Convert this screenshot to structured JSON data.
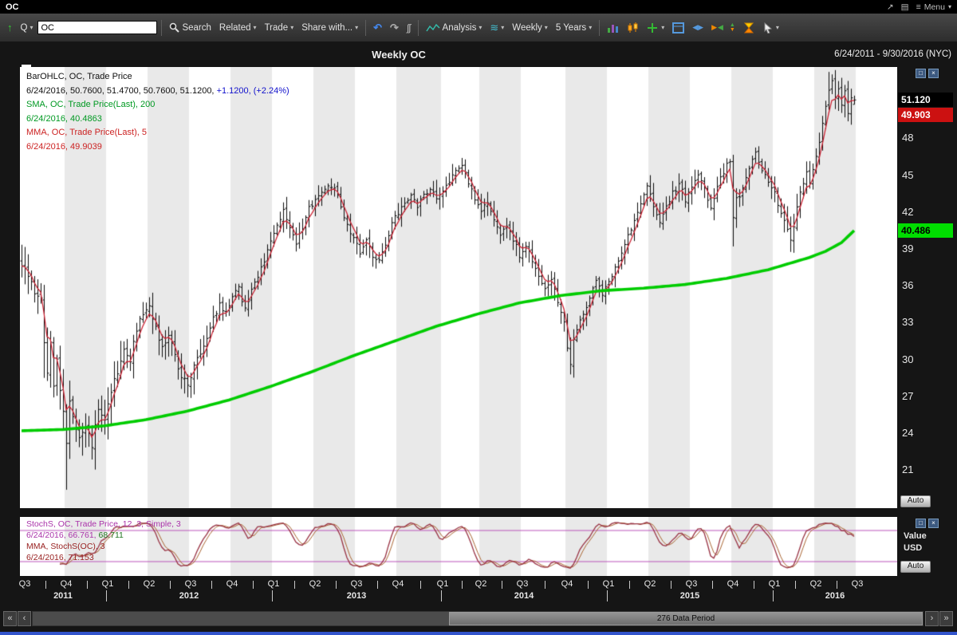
{
  "window": {
    "title": "OC",
    "menu_label": "Menu"
  },
  "icons": {
    "up_arrow": "↑",
    "caret": "▾",
    "undo": "↶",
    "redo": "↷",
    "curves": "∫∫",
    "waves": "≋",
    "popout": "↗",
    "layout": "▤",
    "hamburger": "≡",
    "harrows": "◀▶",
    "bowtie_left": "▶",
    "bowtie_right": "◀",
    "tri_up": "▲",
    "tri_down": "▼",
    "scroll_first": "«",
    "scroll_prev": "‹",
    "scroll_next": "›",
    "scroll_last": "»",
    "pane_box": "□",
    "pane_close": "×"
  },
  "toolbar": {
    "quote_label": "Q",
    "symbol_input": "OC",
    "search_label": "Search",
    "related_label": "Related",
    "trade_label": "Trade",
    "share_label": "Share with...",
    "analysis_label": "Analysis",
    "period_label": "Weekly",
    "range_label": "5 Years"
  },
  "chart_header": {
    "title": "Weekly OC",
    "date_range": "6/24/2011 - 9/30/2016 (NYC)"
  },
  "main_legend": {
    "series1": "BarOHLC, OC, Trade Price",
    "values1": "6/24/2016, 50.7600, 51.4700, 50.7600, 51.1200,",
    "values1_change": "+1.1200, (+2.24%)",
    "series2": "SMA, OC, Trade Price(Last), 200",
    "values2": "6/24/2016, 40.4863",
    "series3": "MMA, OC, Trade Price(Last), 5",
    "values3": "6/24/2016, 49.9039"
  },
  "sub_legend": {
    "series1": "StochS, OC, Trade Price, 12, 3, Simple, 3",
    "values1a": "6/24/2016, 66.761,",
    "values1b": "68.711",
    "series2": "MMA, StochS(OC), 3",
    "values2": "6/24/2016, 71.153"
  },
  "price_tags": [
    {
      "label": "51.120",
      "price": 51.12,
      "bg": "#000000",
      "fg": "#ffffff"
    },
    {
      "label": "49.903",
      "price": 49.9039,
      "bg": "#cc1111",
      "fg": "#ffffff"
    },
    {
      "label": "40.486",
      "price": 40.4863,
      "bg": "#00dd00",
      "fg": "#000000"
    }
  ],
  "main_axis": {
    "ticks": [
      48,
      45,
      42,
      39,
      36,
      33,
      30,
      27,
      24,
      21
    ],
    "auto_label": "Auto"
  },
  "sub_axis": {
    "line1": "Value",
    "line2": "USD",
    "auto_label": "Auto"
  },
  "x_axis": {
    "quarters": [
      {
        "label": "Q3",
        "week": 1
      },
      {
        "label": "Q4",
        "week": 14
      },
      {
        "label": "Q1",
        "week": 27
      },
      {
        "label": "Q2",
        "week": 40
      },
      {
        "label": "Q3",
        "week": 53
      },
      {
        "label": "Q4",
        "week": 66
      },
      {
        "label": "Q1",
        "week": 79
      },
      {
        "label": "Q2",
        "week": 92
      },
      {
        "label": "Q3",
        "week": 105
      },
      {
        "label": "Q4",
        "week": 118
      },
      {
        "label": "Q1",
        "week": 132
      },
      {
        "label": "Q2",
        "week": 144
      },
      {
        "label": "Q3",
        "week": 157
      },
      {
        "label": "Q4",
        "week": 171
      },
      {
        "label": "Q1",
        "week": 184
      },
      {
        "label": "Q2",
        "week": 197
      },
      {
        "label": "Q3",
        "week": 210
      },
      {
        "label": "Q4",
        "week": 223
      },
      {
        "label": "Q1",
        "week": 236
      },
      {
        "label": "Q2",
        "week": 249
      },
      {
        "label": "Q3",
        "week": 262
      }
    ],
    "years": [
      {
        "label": "2011",
        "start": 0,
        "end": 27
      },
      {
        "label": "2012",
        "start": 27,
        "end": 79
      },
      {
        "label": "2013",
        "start": 79,
        "end": 132
      },
      {
        "label": "2014",
        "start": 132,
        "end": 184
      },
      {
        "label": "2015",
        "start": 184,
        "end": 236
      },
      {
        "label": "2016",
        "start": 236,
        "end": 275
      }
    ],
    "year_boundaries": [
      27,
      79,
      132,
      184,
      236
    ]
  },
  "scrollbar": {
    "label": "276 Data Period"
  },
  "chart_data": {
    "type": "ohlc",
    "symbol": "OC",
    "interval": "Weekly",
    "title": "Weekly OC",
    "date_start": "6/24/2011",
    "date_end": "9/30/2016",
    "weeks_total": 275,
    "data_weeks": 262,
    "ylim": [
      17.9,
      53.8
    ],
    "y_ticks": [
      48,
      45,
      42,
      39,
      36,
      33,
      30,
      27,
      24,
      21
    ],
    "last_bar": {
      "date": "6/24/2016",
      "open": 50.76,
      "high": 51.47,
      "low": 50.76,
      "close": 51.12,
      "change": "+1.1200",
      "change_pct": "+2.24%"
    },
    "sma200_last": 40.4863,
    "mma5_last": 49.9039,
    "close_anchors": [
      [
        0,
        37.8
      ],
      [
        2,
        36.8
      ],
      [
        4,
        35.5
      ],
      [
        6,
        35.0
      ],
      [
        7,
        31.5
      ],
      [
        8,
        29.0
      ],
      [
        9,
        31.5
      ],
      [
        10,
        28.0
      ],
      [
        11,
        30.0
      ],
      [
        12,
        27.5
      ],
      [
        13,
        26.0
      ],
      [
        14,
        23.0
      ],
      [
        15,
        26.5
      ],
      [
        16,
        25.5
      ],
      [
        18,
        23.5
      ],
      [
        20,
        24.5
      ],
      [
        22,
        23.0
      ],
      [
        24,
        26.0
      ],
      [
        26,
        25.0
      ],
      [
        28,
        27.5
      ],
      [
        30,
        29.0
      ],
      [
        32,
        31.0
      ],
      [
        34,
        30.0
      ],
      [
        36,
        32.5
      ],
      [
        38,
        33.8
      ],
      [
        40,
        34.5
      ],
      [
        42,
        32.5
      ],
      [
        44,
        31.0
      ],
      [
        46,
        32.0
      ],
      [
        48,
        30.3
      ],
      [
        50,
        28.5
      ],
      [
        52,
        28.0
      ],
      [
        54,
        29.5
      ],
      [
        56,
        30.5
      ],
      [
        58,
        31.5
      ],
      [
        60,
        33.3
      ],
      [
        62,
        34.5
      ],
      [
        64,
        33.8
      ],
      [
        66,
        35.0
      ],
      [
        68,
        35.8
      ],
      [
        70,
        34.0
      ],
      [
        72,
        35.5
      ],
      [
        74,
        36.8
      ],
      [
        76,
        38.0
      ],
      [
        78,
        39.5
      ],
      [
        80,
        41.0
      ],
      [
        82,
        42.0
      ],
      [
        84,
        40.5
      ],
      [
        86,
        39.5
      ],
      [
        88,
        40.8
      ],
      [
        90,
        42.3
      ],
      [
        92,
        42.8
      ],
      [
        94,
        43.8
      ],
      [
        96,
        44.3
      ],
      [
        98,
        44.0
      ],
      [
        100,
        42.5
      ],
      [
        102,
        41.0
      ],
      [
        104,
        39.8
      ],
      [
        106,
        38.8
      ],
      [
        108,
        39.8
      ],
      [
        110,
        38.5
      ],
      [
        112,
        38.0
      ],
      [
        114,
        39.5
      ],
      [
        116,
        41.0
      ],
      [
        118,
        42.0
      ],
      [
        120,
        42.8
      ],
      [
        122,
        43.5
      ],
      [
        124,
        42.5
      ],
      [
        126,
        43.3
      ],
      [
        128,
        44.0
      ],
      [
        130,
        43.0
      ],
      [
        132,
        43.8
      ],
      [
        134,
        44.5
      ],
      [
        136,
        45.3
      ],
      [
        138,
        45.8
      ],
      [
        140,
        44.5
      ],
      [
        142,
        43.0
      ],
      [
        144,
        42.0
      ],
      [
        146,
        42.8
      ],
      [
        148,
        41.5
      ],
      [
        150,
        40.3
      ],
      [
        152,
        41.0
      ],
      [
        154,
        39.8
      ],
      [
        156,
        38.5
      ],
      [
        158,
        39.3
      ],
      [
        160,
        38.0
      ],
      [
        162,
        36.8
      ],
      [
        164,
        35.8
      ],
      [
        166,
        36.5
      ],
      [
        168,
        34.8
      ],
      [
        170,
        33.0
      ],
      [
        171,
        31.0
      ],
      [
        172,
        29.8
      ],
      [
        173,
        31.5
      ],
      [
        174,
        32.5
      ],
      [
        176,
        33.8
      ],
      [
        178,
        35.0
      ],
      [
        180,
        36.3
      ],
      [
        182,
        35.3
      ],
      [
        184,
        36.3
      ],
      [
        186,
        37.5
      ],
      [
        188,
        38.8
      ],
      [
        190,
        40.0
      ],
      [
        192,
        41.3
      ],
      [
        194,
        42.8
      ],
      [
        196,
        44.0
      ],
      [
        198,
        42.5
      ],
      [
        200,
        41.0
      ],
      [
        202,
        42.3
      ],
      [
        204,
        43.5
      ],
      [
        206,
        44.3
      ],
      [
        208,
        43.0
      ],
      [
        210,
        44.0
      ],
      [
        212,
        45.0
      ],
      [
        214,
        43.8
      ],
      [
        216,
        42.5
      ],
      [
        218,
        44.0
      ],
      [
        220,
        45.3
      ],
      [
        222,
        46.3
      ],
      [
        223,
        41.5
      ],
      [
        224,
        43.0
      ],
      [
        226,
        43.8
      ],
      [
        228,
        45.5
      ],
      [
        230,
        46.8
      ],
      [
        232,
        45.5
      ],
      [
        234,
        44.5
      ],
      [
        236,
        43.5
      ],
      [
        238,
        42.0
      ],
      [
        240,
        40.8
      ],
      [
        241,
        39.6
      ],
      [
        242,
        41.0
      ],
      [
        243,
        42.3
      ],
      [
        244,
        43.5
      ],
      [
        245,
        44.5
      ],
      [
        246,
        45.3
      ],
      [
        247,
        44.3
      ],
      [
        248,
        45.5
      ],
      [
        249,
        46.5
      ],
      [
        250,
        47.5
      ],
      [
        251,
        49.0
      ],
      [
        252,
        50.8
      ],
      [
        253,
        52.0
      ],
      [
        254,
        52.6
      ],
      [
        255,
        51.3
      ],
      [
        256,
        52.2
      ],
      [
        257,
        50.8
      ],
      [
        258,
        51.8
      ],
      [
        259,
        50.2
      ],
      [
        260,
        51.5
      ],
      [
        261,
        51.12
      ]
    ],
    "sma200_anchors": [
      [
        0,
        24.2
      ],
      [
        13,
        24.3
      ],
      [
        26,
        24.6
      ],
      [
        39,
        25.1
      ],
      [
        52,
        25.8
      ],
      [
        65,
        26.7
      ],
      [
        78,
        27.8
      ],
      [
        91,
        29.0
      ],
      [
        104,
        30.3
      ],
      [
        117,
        31.5
      ],
      [
        130,
        32.7
      ],
      [
        143,
        33.7
      ],
      [
        156,
        34.6
      ],
      [
        169,
        35.2
      ],
      [
        182,
        35.6
      ],
      [
        195,
        35.8
      ],
      [
        208,
        36.1
      ],
      [
        221,
        36.6
      ],
      [
        234,
        37.3
      ],
      [
        247,
        38.3
      ],
      [
        252,
        38.8
      ],
      [
        257,
        39.5
      ],
      [
        261,
        40.49
      ]
    ],
    "spikes": [
      {
        "week": 7,
        "low": 28.5
      },
      {
        "week": 14,
        "low": 19.4
      },
      {
        "week": 172,
        "low": 29.0
      },
      {
        "week": 223,
        "low": 39.2
      },
      {
        "week": 253,
        "high": 53.4
      },
      {
        "week": 254,
        "high": 53.2
      }
    ],
    "stochastic": {
      "k_last": 66.761,
      "d_last": 68.711,
      "mma_last": 71.153,
      "levels": [
        80,
        20
      ],
      "range": [
        0,
        100
      ]
    }
  }
}
